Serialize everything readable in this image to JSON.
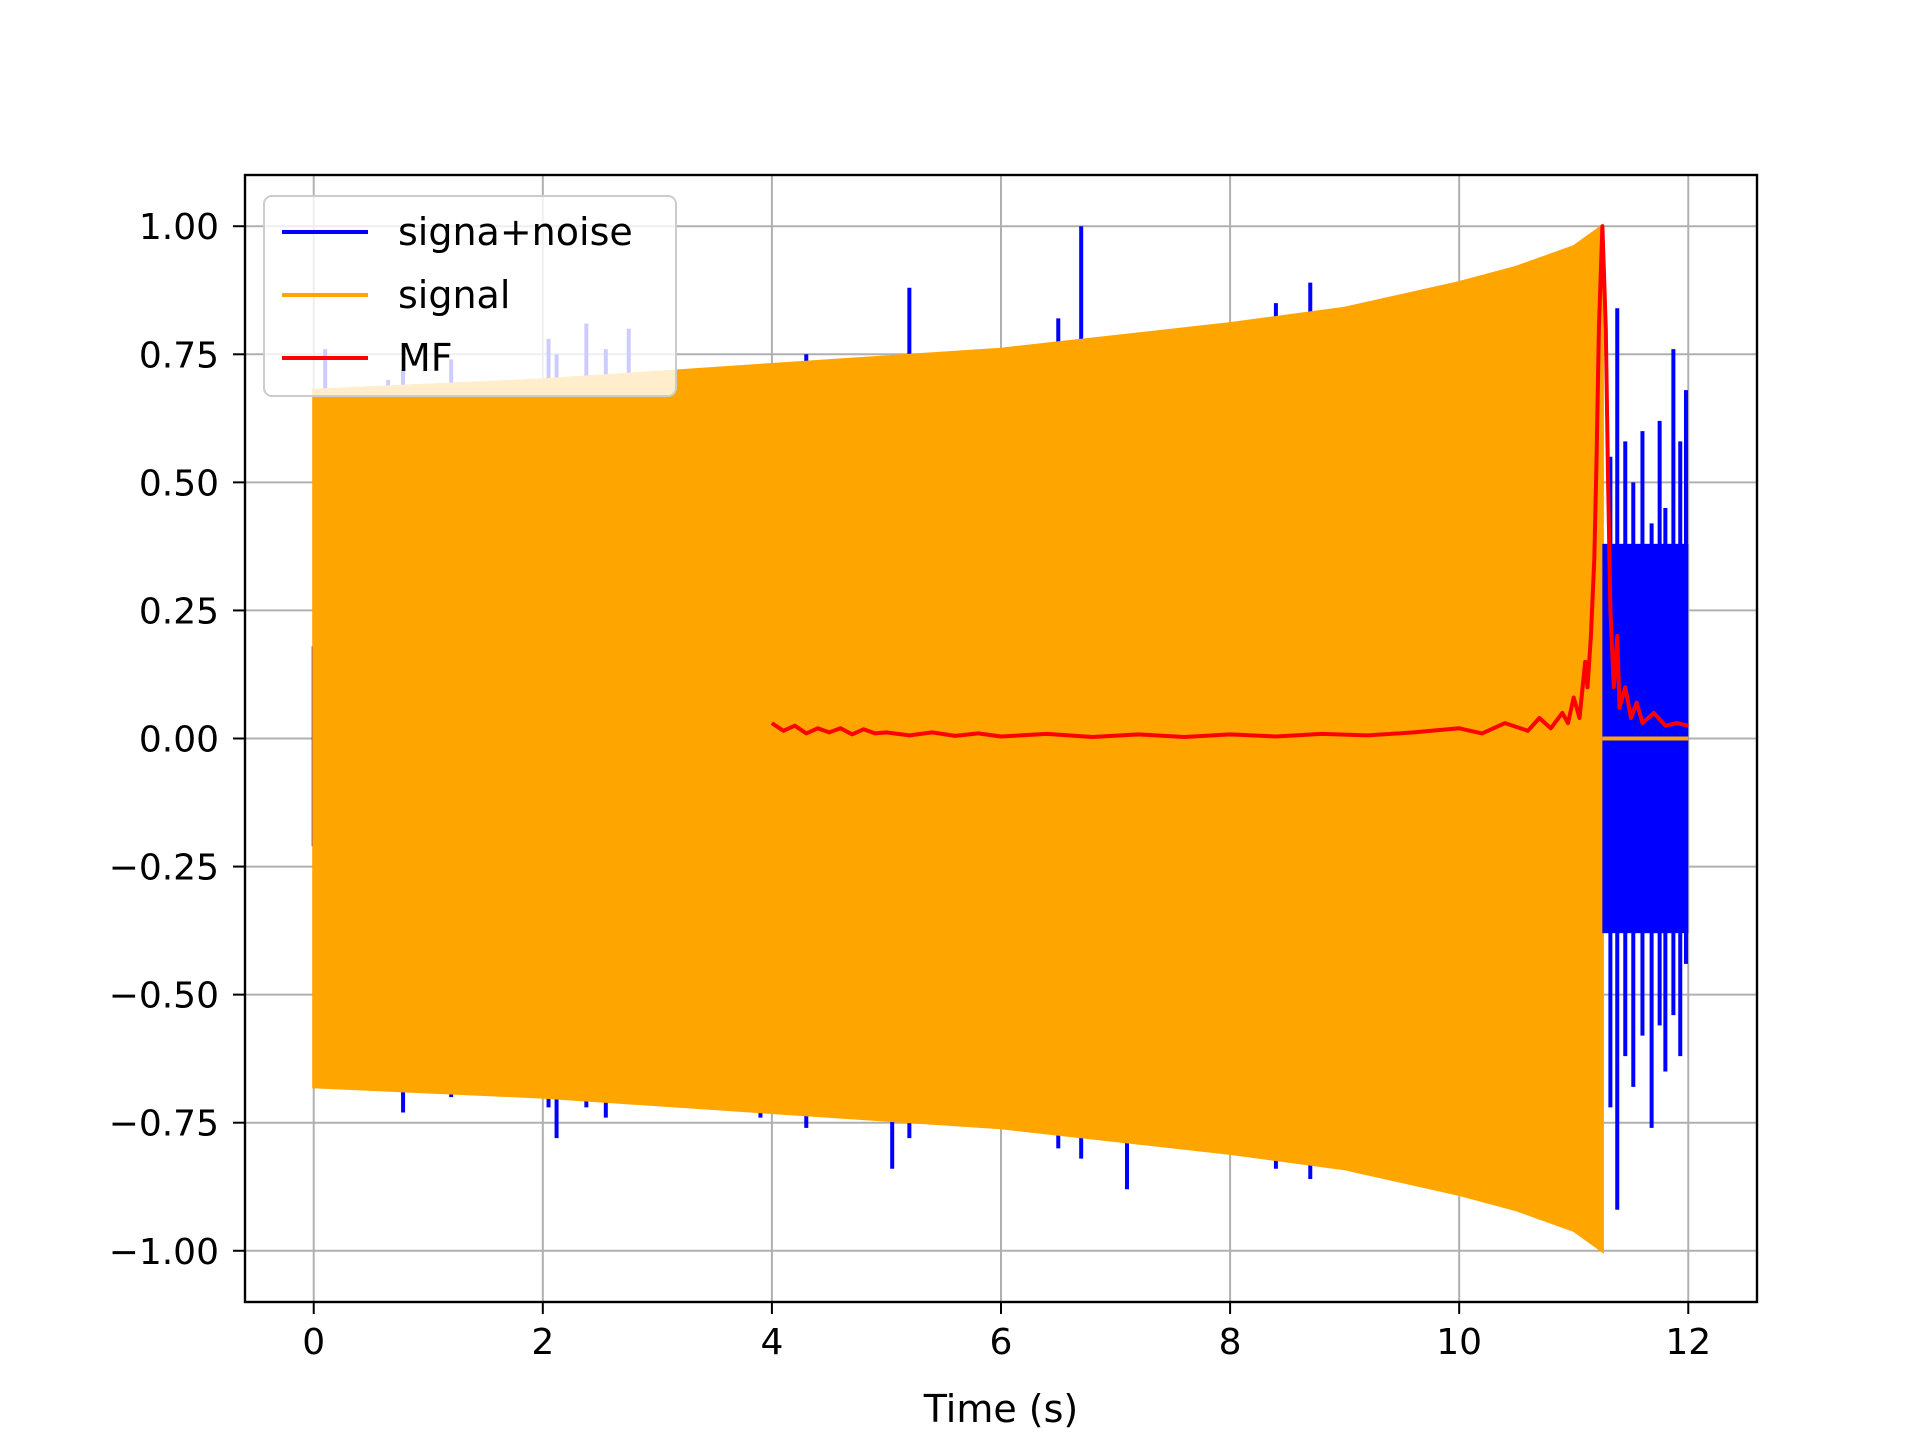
{
  "chart_data": {
    "type": "line",
    "title": "",
    "xlabel": "Time (s)",
    "ylabel": "",
    "xlim": [
      -0.6,
      12.6
    ],
    "ylim": [
      -1.1,
      1.1
    ],
    "xticks": [
      0,
      2,
      4,
      6,
      8,
      10,
      12
    ],
    "xtick_labels": [
      "0",
      "2",
      "4",
      "6",
      "8",
      "10",
      "12"
    ],
    "yticks": [
      1.0,
      0.75,
      0.5,
      0.25,
      0.0,
      -0.25,
      -0.5,
      -0.75,
      -1.0
    ],
    "ytick_labels": [
      "1.00",
      "0.75",
      "0.50",
      "0.25",
      "0.00",
      "−0.25",
      "−0.50",
      "−0.75",
      "−1.00"
    ],
    "grid": true,
    "legend": {
      "position": "top-left",
      "entries": [
        "signa+noise",
        "signal",
        "MF"
      ]
    },
    "series": [
      {
        "name": "signa+noise",
        "color": "#0000ff",
        "spikes": [
          [
            0.0,
            0.18,
            -0.21
          ],
          [
            0.1,
            0.76,
            -0.62
          ],
          [
            0.65,
            0.7,
            -0.65
          ],
          [
            0.78,
            0.72,
            -0.73
          ],
          [
            1.2,
            0.74,
            -0.7
          ],
          [
            2.05,
            0.78,
            -0.72
          ],
          [
            2.12,
            0.75,
            -0.78
          ],
          [
            2.38,
            0.81,
            -0.72
          ],
          [
            2.55,
            0.76,
            -0.74
          ],
          [
            2.75,
            0.8,
            -0.7
          ],
          [
            3.9,
            0.73,
            -0.74
          ],
          [
            4.3,
            0.75,
            -0.76
          ],
          [
            5.05,
            0.74,
            -0.84
          ],
          [
            5.2,
            0.88,
            -0.78
          ],
          [
            6.5,
            0.82,
            -0.8
          ],
          [
            6.7,
            1.0,
            -0.82
          ],
          [
            7.1,
            0.78,
            -0.88
          ],
          [
            8.4,
            0.85,
            -0.84
          ],
          [
            8.7,
            0.89,
            -0.86
          ]
        ],
        "tail": {
          "x_range": [
            11.25,
            12.0
          ],
          "peaks": [
            [
              11.32,
              0.55,
              -0.72
            ],
            [
              11.38,
              0.84,
              -0.92
            ],
            [
              11.45,
              0.58,
              -0.62
            ],
            [
              11.52,
              0.5,
              -0.68
            ],
            [
              11.6,
              0.6,
              -0.58
            ],
            [
              11.68,
              0.42,
              -0.76
            ],
            [
              11.75,
              0.62,
              -0.56
            ],
            [
              11.8,
              0.45,
              -0.65
            ],
            [
              11.87,
              0.76,
              -0.54
            ],
            [
              11.93,
              0.58,
              -0.62
            ],
            [
              11.98,
              0.68,
              -0.44
            ]
          ]
        }
      },
      {
        "name": "signal",
        "color": "#ffa500",
        "envelope_x": [
          0.0,
          2.0,
          4.0,
          6.0,
          8.0,
          9.0,
          10.0,
          10.5,
          11.0,
          11.25
        ],
        "envelope_amplitude": [
          0.68,
          0.7,
          0.73,
          0.76,
          0.81,
          0.84,
          0.89,
          0.92,
          0.96,
          1.0
        ],
        "after_x": [
          11.25,
          12.0
        ],
        "after_value": 0.0
      },
      {
        "name": "MF",
        "color": "#ff0000",
        "x": [
          4.0,
          4.1,
          4.2,
          4.3,
          4.4,
          4.5,
          4.6,
          4.7,
          4.8,
          4.9,
          5.0,
          5.2,
          5.4,
          5.6,
          5.8,
          6.0,
          6.4,
          6.8,
          7.2,
          7.6,
          8.0,
          8.4,
          8.8,
          9.2,
          9.6,
          10.0,
          10.2,
          10.4,
          10.6,
          10.7,
          10.8,
          10.9,
          10.95,
          11.0,
          11.05,
          11.1,
          11.12,
          11.15,
          11.18,
          11.2,
          11.22,
          11.25,
          11.28,
          11.3,
          11.32,
          11.35,
          11.38,
          11.4,
          11.45,
          11.5,
          11.55,
          11.6,
          11.7,
          11.8,
          11.9,
          12.0
        ],
        "y": [
          0.03,
          0.015,
          0.025,
          0.01,
          0.02,
          0.012,
          0.02,
          0.008,
          0.018,
          0.01,
          0.012,
          0.006,
          0.012,
          0.005,
          0.01,
          0.004,
          0.009,
          0.003,
          0.008,
          0.003,
          0.008,
          0.004,
          0.009,
          0.006,
          0.012,
          0.02,
          0.01,
          0.03,
          0.015,
          0.04,
          0.02,
          0.05,
          0.03,
          0.08,
          0.04,
          0.15,
          0.1,
          0.2,
          0.35,
          0.55,
          0.8,
          1.0,
          0.8,
          0.5,
          0.25,
          0.1,
          0.2,
          0.06,
          0.1,
          0.04,
          0.07,
          0.03,
          0.05,
          0.025,
          0.03,
          0.025
        ]
      }
    ]
  }
}
